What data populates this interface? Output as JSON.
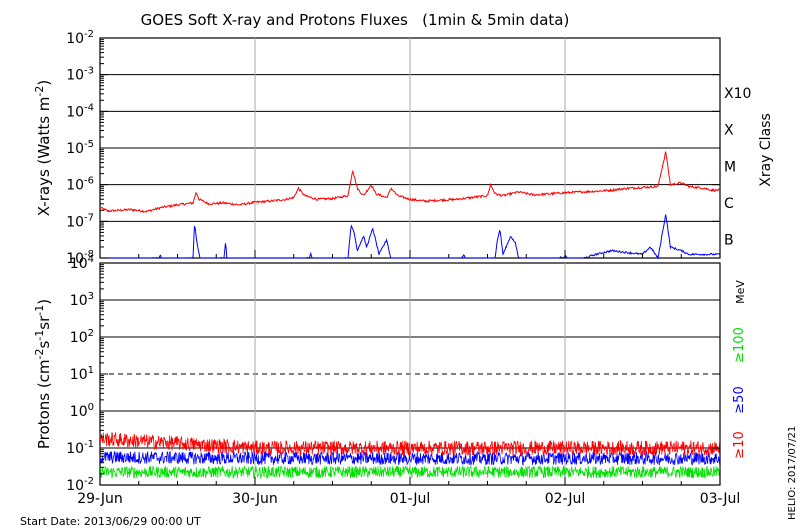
{
  "title": "GOES Soft X-ray and Protons Fluxes   (1min & 5min data)",
  "start_date": "Start Date: 2013/06/29 00:00 UT",
  "footer_right": "HELIO: 2017/07/21",
  "colors": {
    "xray_long": "#ff0000",
    "xray_short": "#0000ff",
    "proton_10": "#ff0000",
    "proton_50": "#0000ff",
    "proton_100": "#00e000",
    "grid": "#000000",
    "day_line": "#aaaaaa"
  },
  "chart_data": [
    {
      "type": "line",
      "panel": "xray",
      "ylabel_main": "X-rays (Watts m",
      "ylabel_exp": "-2",
      "ylabel_close": ")",
      "yscale": "log",
      "ylim_exp": [
        -8,
        -2
      ],
      "ytick_exponents": [
        "-8",
        "-7",
        "-6",
        "-5",
        "-4",
        "-3",
        "-2"
      ],
      "right_axis_title": "Xray Class",
      "right_labels": [
        {
          "label": "B",
          "exp": -7.5
        },
        {
          "label": "C",
          "exp": -6.5
        },
        {
          "label": "M",
          "exp": -5.5
        },
        {
          "label": "X",
          "exp": -4.5
        },
        {
          "label": "X10",
          "exp": -3.5
        }
      ],
      "grid_exponents": [
        -7,
        -6,
        -5,
        -4,
        -3
      ],
      "series": [
        {
          "key": "long",
          "points": [
            [
              0.0,
              -6.62
            ],
            [
              0.05,
              -6.72
            ],
            [
              0.12,
              -6.7
            ],
            [
              0.2,
              -6.68
            ],
            [
              0.3,
              -6.73
            ],
            [
              0.4,
              -6.62
            ],
            [
              0.5,
              -6.55
            ],
            [
              0.6,
              -6.5
            ],
            [
              0.62,
              -6.2
            ],
            [
              0.64,
              -6.4
            ],
            [
              0.7,
              -6.52
            ],
            [
              0.8,
              -6.5
            ],
            [
              0.9,
              -6.55
            ],
            [
              1.0,
              -6.48
            ],
            [
              1.1,
              -6.45
            ],
            [
              1.2,
              -6.4
            ],
            [
              1.25,
              -6.35
            ],
            [
              1.28,
              -6.1
            ],
            [
              1.32,
              -6.3
            ],
            [
              1.4,
              -6.4
            ],
            [
              1.5,
              -6.38
            ],
            [
              1.6,
              -6.3
            ],
            [
              1.63,
              -5.6
            ],
            [
              1.66,
              -6.1
            ],
            [
              1.7,
              -6.3
            ],
            [
              1.75,
              -6.0
            ],
            [
              1.78,
              -6.25
            ],
            [
              1.85,
              -6.35
            ],
            [
              1.88,
              -6.1
            ],
            [
              1.92,
              -6.3
            ],
            [
              2.0,
              -6.4
            ],
            [
              2.1,
              -6.45
            ],
            [
              2.2,
              -6.42
            ],
            [
              2.3,
              -6.4
            ],
            [
              2.4,
              -6.35
            ],
            [
              2.5,
              -6.3
            ],
            [
              2.52,
              -6.0
            ],
            [
              2.55,
              -6.25
            ],
            [
              2.6,
              -6.3
            ],
            [
              2.7,
              -6.2
            ],
            [
              2.8,
              -6.28
            ],
            [
              2.9,
              -6.25
            ],
            [
              3.0,
              -6.22
            ],
            [
              3.1,
              -6.2
            ],
            [
              3.2,
              -6.18
            ],
            [
              3.3,
              -6.15
            ],
            [
              3.4,
              -6.1
            ],
            [
              3.6,
              -6.05
            ],
            [
              3.65,
              -5.1
            ],
            [
              3.68,
              -6.0
            ],
            [
              3.75,
              -5.95
            ],
            [
              3.8,
              -6.05
            ],
            [
              3.9,
              -6.1
            ],
            [
              3.95,
              -6.15
            ]
          ]
        },
        {
          "key": "short",
          "points": [
            [
              0.0,
              -8.1
            ],
            [
              0.38,
              -8.0
            ],
            [
              0.39,
              -7.92
            ],
            [
              0.4,
              -8.1
            ],
            [
              0.6,
              -8.0
            ],
            [
              0.61,
              -7.05
            ],
            [
              0.63,
              -7.7
            ],
            [
              0.65,
              -8.1
            ],
            [
              0.8,
              -8.0
            ],
            [
              0.81,
              -7.55
            ],
            [
              0.82,
              -8.1
            ],
            [
              1.2,
              -8.1
            ],
            [
              1.35,
              -8.0
            ],
            [
              1.36,
              -7.9
            ],
            [
              1.38,
              -8.1
            ],
            [
              1.6,
              -8.0
            ],
            [
              1.62,
              -7.1
            ],
            [
              1.64,
              -7.3
            ],
            [
              1.66,
              -7.8
            ],
            [
              1.7,
              -7.4
            ],
            [
              1.72,
              -7.7
            ],
            [
              1.76,
              -7.2
            ],
            [
              1.8,
              -7.9
            ],
            [
              1.85,
              -7.5
            ],
            [
              1.88,
              -8.1
            ],
            [
              2.3,
              -8.1
            ],
            [
              2.35,
              -7.9
            ],
            [
              2.36,
              -8.1
            ],
            [
              2.55,
              -8.0
            ],
            [
              2.56,
              -7.6
            ],
            [
              2.58,
              -7.2
            ],
            [
              2.6,
              -7.9
            ],
            [
              2.65,
              -7.4
            ],
            [
              2.68,
              -7.6
            ],
            [
              2.7,
              -8.0
            ],
            [
              2.9,
              -8.1
            ],
            [
              3.0,
              -7.95
            ],
            [
              3.05,
              -8.1
            ],
            [
              3.2,
              -7.9
            ],
            [
              3.3,
              -7.8
            ],
            [
              3.5,
              -7.9
            ],
            [
              3.55,
              -7.7
            ],
            [
              3.6,
              -8.0
            ],
            [
              3.65,
              -6.8
            ],
            [
              3.68,
              -7.7
            ],
            [
              3.75,
              -7.8
            ],
            [
              3.8,
              -7.9
            ],
            [
              3.95,
              -7.9
            ]
          ]
        }
      ]
    },
    {
      "type": "line",
      "panel": "protons",
      "ylabel_main": "Protons (cm",
      "ylabel_exp1": "-2",
      "ylabel_mid": "s",
      "ylabel_exp2": "-1",
      "ylabel_mid2": "sr",
      "ylabel_exp3": "-1",
      "ylabel_close": ")",
      "yscale": "log",
      "ylim_exp": [
        -2,
        4
      ],
      "ytick_bases": [
        "10",
        "10",
        "10",
        "10",
        "10",
        "10",
        "10"
      ],
      "ytick_exponents": [
        "-2",
        "-1",
        "0",
        "1",
        "2",
        "3",
        "4"
      ],
      "ytick_exp_values": [
        -2,
        -1,
        0,
        1,
        2,
        3,
        4
      ],
      "grid_exponents": [
        -1,
        0,
        2,
        3
      ],
      "dashed_grid_exponent": 1,
      "right_labels": [
        {
          "label": "MeV",
          "key": "mev"
        },
        {
          "label": "≥100",
          "key": "p100"
        },
        {
          "label": "≥50",
          "key": "p50"
        },
        {
          "label": "≥10",
          "key": "p10"
        }
      ],
      "series": [
        {
          "key": "p10",
          "base_start": -0.75,
          "base_end": -1.0,
          "amp": 0.25
        },
        {
          "key": "p50",
          "base_start": -1.25,
          "base_end": -1.28,
          "amp": 0.22
        },
        {
          "key": "p100",
          "base_start": -1.65,
          "base_end": -1.65,
          "amp": 0.2
        }
      ]
    }
  ],
  "x_axis": {
    "range_days": [
      0,
      4
    ],
    "tick_labels": [
      "29-Jun",
      "30-Jun",
      "01-Jul",
      "02-Jul",
      "03-Jul"
    ],
    "tick_days": [
      0,
      1,
      2,
      3,
      4
    ]
  }
}
